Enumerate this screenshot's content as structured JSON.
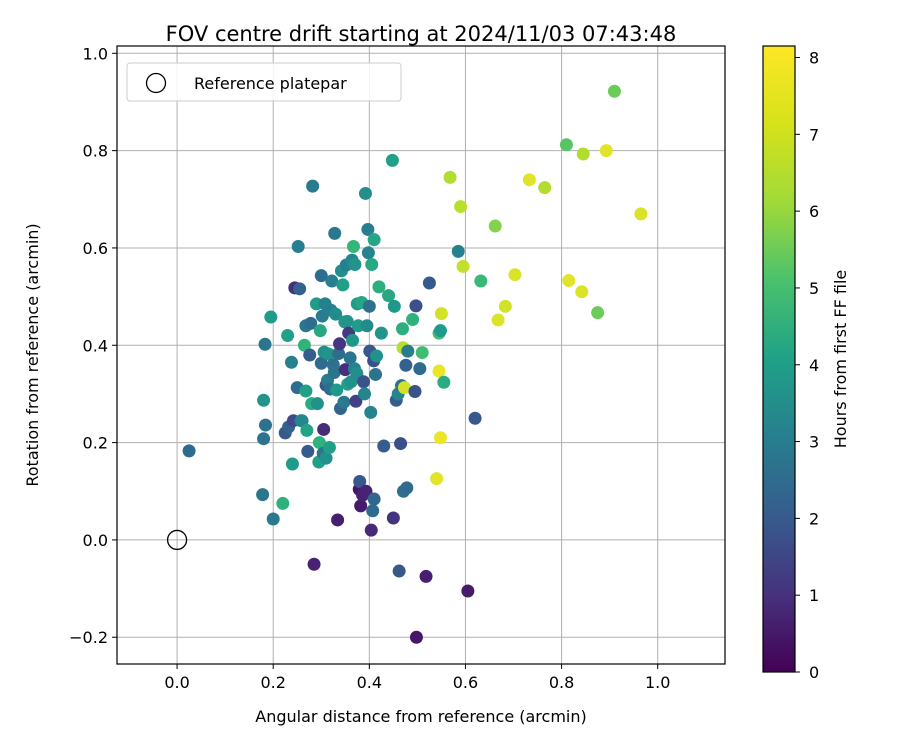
{
  "chart_data": {
    "type": "scatter",
    "title": "FOV centre drift starting at 2024/11/03 07:43:48",
    "xlabel": "Angular distance from reference (arcmin)",
    "ylabel": "Rotation from reference (arcmin)",
    "xlim": [
      -0.125,
      1.14
    ],
    "ylim": [
      -0.255,
      1.015
    ],
    "x_ticks": [
      "0.0",
      "0.2",
      "0.4",
      "0.6",
      "0.8",
      "1.0"
    ],
    "y_ticks": [
      "−0.2",
      "0.0",
      "0.2",
      "0.4",
      "0.6",
      "0.8",
      "1.0"
    ],
    "grid": true,
    "legend": {
      "placement": "top-left",
      "entries": [
        {
          "label": "Reference platepar",
          "marker": "open-circle",
          "x": 0.0,
          "y": 0.0
        }
      ]
    },
    "colorbar": {
      "label": "Hours from first FF file",
      "colormap": "viridis",
      "range": [
        0,
        8.15
      ],
      "ticks": [
        "0",
        "1",
        "2",
        "3",
        "4",
        "5",
        "6",
        "7",
        "8"
      ]
    },
    "points": [
      [
        0.025,
        0.183,
        2.8
      ],
      [
        0.178,
        0.093,
        3.2
      ],
      [
        0.18,
        0.208,
        3.1
      ],
      [
        0.18,
        0.287,
        4.2
      ],
      [
        0.183,
        0.402,
        3.2
      ],
      [
        0.184,
        0.236,
        3.0
      ],
      [
        0.195,
        0.458,
        4.5
      ],
      [
        0.2,
        0.043,
        3.3
      ],
      [
        0.22,
        0.075,
        5.2
      ],
      [
        0.225,
        0.22,
        2.2
      ],
      [
        0.23,
        0.42,
        4.6
      ],
      [
        0.232,
        0.232,
        2.5
      ],
      [
        0.238,
        0.365,
        3.6
      ],
      [
        0.24,
        0.156,
        4.4
      ],
      [
        0.242,
        0.245,
        1.8
      ],
      [
        0.245,
        0.518,
        1.1
      ],
      [
        0.25,
        0.313,
        2.9
      ],
      [
        0.252,
        0.603,
        3.5
      ],
      [
        0.255,
        0.516,
        2.5
      ],
      [
        0.258,
        0.245,
        3.6
      ],
      [
        0.26,
        0.245,
        3.8
      ],
      [
        0.265,
        0.4,
        5.3
      ],
      [
        0.268,
        0.306,
        4.6
      ],
      [
        0.268,
        0.44,
        3.2
      ],
      [
        0.27,
        0.225,
        4.7
      ],
      [
        0.272,
        0.182,
        2.3
      ],
      [
        0.276,
        0.38,
        2.4
      ],
      [
        0.278,
        0.445,
        2.9
      ],
      [
        0.28,
        0.28,
        5.0
      ],
      [
        0.282,
        0.727,
        3.4
      ],
      [
        0.285,
        -0.05,
        0.8
      ],
      [
        0.29,
        0.485,
        4.5
      ],
      [
        0.292,
        0.28,
        4.1
      ],
      [
        0.295,
        0.16,
        4.6
      ],
      [
        0.296,
        0.2,
        5.2
      ],
      [
        0.298,
        0.43,
        4.9
      ],
      [
        0.3,
        0.543,
        2.9
      ],
      [
        0.3,
        0.363,
        2.8
      ],
      [
        0.302,
        0.46,
        3.4
      ],
      [
        0.304,
        0.178,
        3.2
      ],
      [
        0.305,
        0.227,
        1.0
      ],
      [
        0.306,
        0.386,
        4.0
      ],
      [
        0.308,
        0.485,
        3.6
      ],
      [
        0.31,
        0.318,
        2.2
      ],
      [
        0.31,
        0.168,
        4.1
      ],
      [
        0.313,
        0.328,
        3.4
      ],
      [
        0.315,
        0.382,
        4.2
      ],
      [
        0.317,
        0.19,
        4.6
      ],
      [
        0.319,
        0.31,
        2.9
      ],
      [
        0.32,
        0.472,
        3.5
      ],
      [
        0.322,
        0.532,
        3.5
      ],
      [
        0.325,
        0.36,
        3.0
      ],
      [
        0.327,
        0.344,
        3.1
      ],
      [
        0.328,
        0.63,
        3.3
      ],
      [
        0.33,
        0.464,
        3.9
      ],
      [
        0.332,
        0.308,
        4.4
      ],
      [
        0.334,
        0.041,
        0.7
      ],
      [
        0.336,
        0.383,
        2.9
      ],
      [
        0.338,
        0.403,
        1.3
      ],
      [
        0.34,
        0.27,
        2.6
      ],
      [
        0.342,
        0.553,
        4.0
      ],
      [
        0.345,
        0.524,
        4.6
      ],
      [
        0.347,
        0.283,
        3.3
      ],
      [
        0.349,
        0.448,
        4.3
      ],
      [
        0.35,
        0.35,
        1.1
      ],
      [
        0.352,
        0.565,
        3.6
      ],
      [
        0.354,
        0.449,
        4.2
      ],
      [
        0.355,
        0.32,
        4.6
      ],
      [
        0.357,
        0.425,
        1.4
      ],
      [
        0.36,
        0.374,
        3.2
      ],
      [
        0.362,
        0.325,
        4.1
      ],
      [
        0.364,
        0.575,
        3.8
      ],
      [
        0.365,
        0.41,
        4.3
      ],
      [
        0.367,
        0.603,
        5.4
      ],
      [
        0.369,
        0.352,
        3.6
      ],
      [
        0.37,
        0.566,
        4.2
      ],
      [
        0.372,
        0.285,
        1.6
      ],
      [
        0.374,
        0.342,
        4.0
      ],
      [
        0.375,
        0.485,
        4.5
      ],
      [
        0.377,
        0.44,
        4.5
      ],
      [
        0.379,
        0.104,
        0.5
      ],
      [
        0.38,
        0.12,
        2.2
      ],
      [
        0.382,
        0.07,
        0.6
      ],
      [
        0.384,
        0.488,
        4.8
      ],
      [
        0.386,
        0.092,
        0.8
      ],
      [
        0.388,
        0.325,
        2.1
      ],
      [
        0.39,
        0.3,
        3.7
      ],
      [
        0.392,
        0.712,
        4.0
      ],
      [
        0.393,
        0.1,
        0.8
      ],
      [
        0.395,
        0.44,
        3.9
      ],
      [
        0.397,
        0.638,
        3.5
      ],
      [
        0.398,
        0.59,
        3.7
      ],
      [
        0.4,
        0.48,
        3.0
      ],
      [
        0.401,
        0.388,
        2.2
      ],
      [
        0.403,
        0.262,
        3.7
      ],
      [
        0.404,
        0.02,
        0.9
      ],
      [
        0.405,
        0.566,
        4.9
      ],
      [
        0.407,
        0.06,
        2.8
      ],
      [
        0.409,
        0.368,
        2.0
      ],
      [
        0.41,
        0.617,
        4.8
      ],
      [
        0.41,
        0.084,
        2.7
      ],
      [
        0.413,
        0.34,
        3.1
      ],
      [
        0.415,
        0.378,
        4.1
      ],
      [
        0.42,
        0.52,
        5.1
      ],
      [
        0.425,
        0.425,
        4.2
      ],
      [
        0.43,
        0.193,
        2.4
      ],
      [
        0.44,
        0.502,
        4.9
      ],
      [
        0.448,
        0.78,
        4.6
      ],
      [
        0.45,
        0.045,
        1.2
      ],
      [
        0.452,
        0.48,
        4.3
      ],
      [
        0.456,
        0.287,
        2.4
      ],
      [
        0.46,
        0.3,
        3.7
      ],
      [
        0.462,
        -0.064,
        2.2
      ],
      [
        0.465,
        0.198,
        2.0
      ],
      [
        0.467,
        0.317,
        3.0
      ],
      [
        0.469,
        0.434,
        5.1
      ],
      [
        0.47,
        0.395,
        7.3
      ],
      [
        0.471,
        0.1,
        3.0
      ],
      [
        0.473,
        0.313,
        7.6
      ],
      [
        0.476,
        0.359,
        2.5
      ],
      [
        0.478,
        0.107,
        2.8
      ],
      [
        0.48,
        0.388,
        3.4
      ],
      [
        0.49,
        0.453,
        5.2
      ],
      [
        0.495,
        0.305,
        2.1
      ],
      [
        0.497,
        0.481,
        2.0
      ],
      [
        0.498,
        -0.2,
        0.5
      ],
      [
        0.505,
        0.352,
        2.8
      ],
      [
        0.51,
        0.385,
        5.6
      ],
      [
        0.518,
        -0.075,
        0.7
      ],
      [
        0.525,
        0.528,
        2.3
      ],
      [
        0.54,
        0.126,
        7.8
      ],
      [
        0.545,
        0.425,
        5.7
      ],
      [
        0.545,
        0.347,
        7.9
      ],
      [
        0.548,
        0.43,
        4.4
      ],
      [
        0.548,
        0.21,
        7.9
      ],
      [
        0.55,
        0.465,
        7.6
      ],
      [
        0.555,
        0.324,
        5.0
      ],
      [
        0.568,
        0.745,
        7.2
      ],
      [
        0.585,
        0.593,
        3.6
      ],
      [
        0.59,
        0.685,
        7.3
      ],
      [
        0.595,
        0.562,
        7.4
      ],
      [
        0.605,
        -0.105,
        0.6
      ],
      [
        0.62,
        0.25,
        2.2
      ],
      [
        0.632,
        0.532,
        5.5
      ],
      [
        0.662,
        0.645,
        6.6
      ],
      [
        0.668,
        0.452,
        7.7
      ],
      [
        0.683,
        0.48,
        7.6
      ],
      [
        0.703,
        0.545,
        7.7
      ],
      [
        0.733,
        0.74,
        7.8
      ],
      [
        0.765,
        0.724,
        7.2
      ],
      [
        0.81,
        0.812,
        6.0
      ],
      [
        0.815,
        0.533,
        7.8
      ],
      [
        0.842,
        0.51,
        7.7
      ],
      [
        0.845,
        0.793,
        7.2
      ],
      [
        0.875,
        0.467,
        6.3
      ],
      [
        0.893,
        0.8,
        7.8
      ],
      [
        0.91,
        0.922,
        6.3
      ],
      [
        0.965,
        0.67,
        7.7
      ]
    ]
  }
}
